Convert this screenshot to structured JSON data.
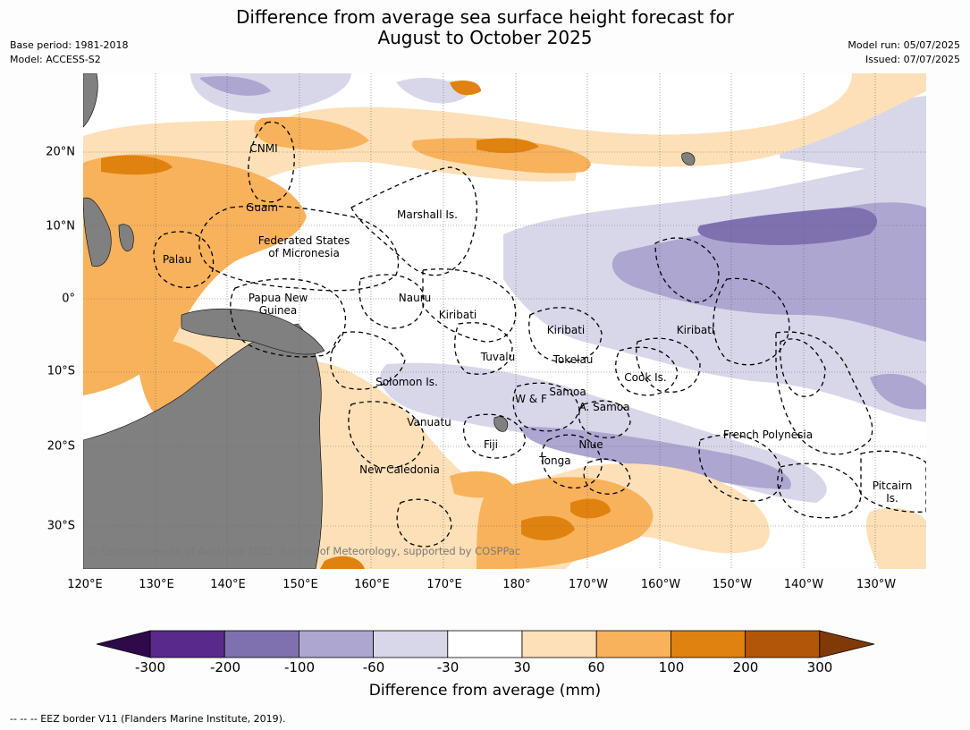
{
  "title": {
    "line1": "Difference from average sea surface height forecast for",
    "line2": "August to October 2025"
  },
  "meta_left": {
    "base_period": "Base period: 1981-2018",
    "model": "Model: ACCESS-S2"
  },
  "meta_right": {
    "model_run": "Model run: 05/07/2025",
    "issued": "Issued: 07/07/2025"
  },
  "axes": {
    "lon_labels": [
      "120°E",
      "130°E",
      "140°E",
      "150°E",
      "160°E",
      "170°E",
      "180°",
      "170°W",
      "160°W",
      "150°W",
      "140°W",
      "130°W"
    ],
    "lat_labels": [
      "20°N",
      "10°N",
      "0°",
      "10°S",
      "20°S",
      "30°S"
    ]
  },
  "places": [
    {
      "name": "CNMI"
    },
    {
      "name": "Guam"
    },
    {
      "name": "Marshall Is."
    },
    {
      "name": "Federated States"
    },
    {
      "name": "of Micronesia"
    },
    {
      "name": "Palau"
    },
    {
      "name": "Papua New"
    },
    {
      "name": "Guinea"
    },
    {
      "name": "Nauru"
    },
    {
      "name": "Kiribati"
    },
    {
      "name": "Kiribati"
    },
    {
      "name": "Kiribati"
    },
    {
      "name": "Tuvalu"
    },
    {
      "name": "Tokelau"
    },
    {
      "name": "Solomon Is."
    },
    {
      "name": "Cook Is."
    },
    {
      "name": "Samoa"
    },
    {
      "name": "W & F"
    },
    {
      "name": "A. Samoa"
    },
    {
      "name": "Vanuatu"
    },
    {
      "name": "Fiji"
    },
    {
      "name": "Niue"
    },
    {
      "name": "French Polynesia"
    },
    {
      "name": "Tonga"
    },
    {
      "name": "New Caledonia"
    },
    {
      "name": "Pitcairn"
    },
    {
      "name": "Is."
    }
  ],
  "copyright": "© Commonwealth of Australia 2025, Bureau of Meteorology, supported by COSPPac",
  "colorbar": {
    "ticks": [
      "-300",
      "-200",
      "-100",
      "-60",
      "-30",
      "30",
      "60",
      "100",
      "200",
      "300"
    ],
    "colors": [
      "#2e0a4b",
      "#5a2a8a",
      "#7f70b0",
      "#ada6d0",
      "#d8d7ea",
      "#ffffff",
      "#fde0b7",
      "#f8b25c",
      "#e0820f",
      "#b2570a",
      "#7f3a08"
    ],
    "label": "Difference from average (mm)"
  },
  "footnote": "--  --  -- EEZ border V11 (Flanders Marine Institute, 2019).",
  "colors": {
    "land": "#808080",
    "ocean_neutral": "#ffffff"
  }
}
